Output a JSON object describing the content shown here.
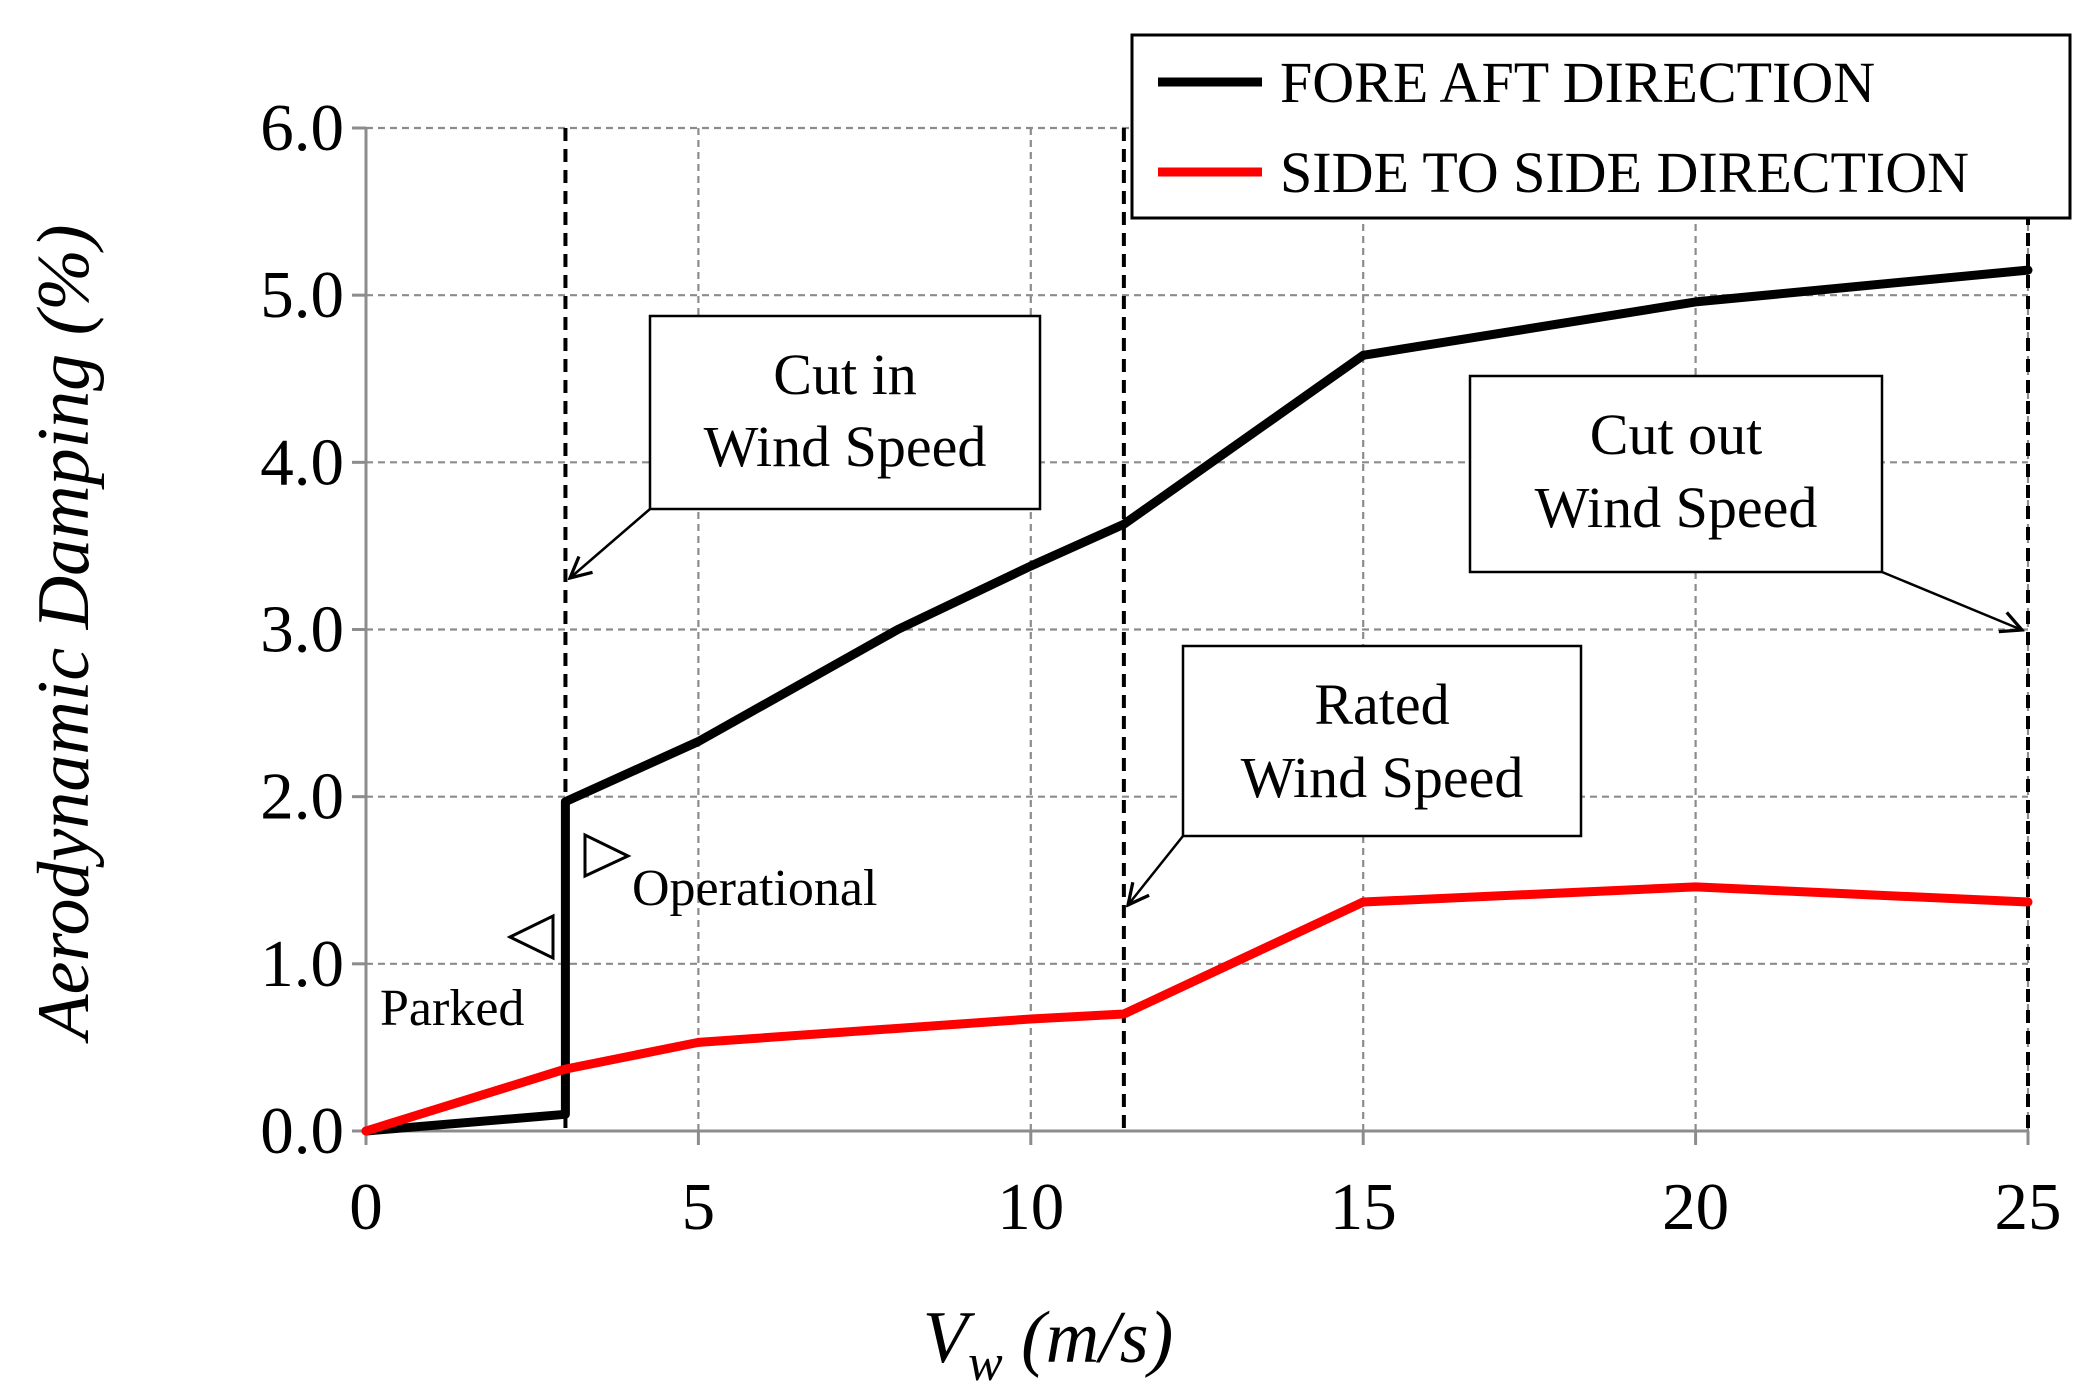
{
  "chart_data": {
    "type": "line",
    "xlabel": "V",
    "xlabel_sub": "w",
    "xlabel_units": " (m/s)",
    "ylabel": "Aerodynamic Damping (%)",
    "xlim": [
      0,
      25
    ],
    "ylim": [
      0,
      6
    ],
    "x_ticks": [
      "0",
      "5",
      "10",
      "15",
      "20",
      "25"
    ],
    "x_tick_values": [
      0,
      5,
      10,
      15,
      20,
      25
    ],
    "y_ticks": [
      "0.0",
      "1.0",
      "2.0",
      "3.0",
      "4.0",
      "5.0",
      "6.0"
    ],
    "y_tick_values": [
      0,
      1,
      2,
      3,
      4,
      5,
      6
    ],
    "grid": true,
    "legend_position": "top-right",
    "series": [
      {
        "name": "FORE AFT DIRECTION",
        "color": "#000000",
        "x": [
          0,
          3,
          3,
          5,
          8,
          10,
          11.4,
          15,
          20,
          25
        ],
        "values": [
          0.0,
          0.1,
          1.97,
          2.33,
          3.0,
          3.38,
          3.63,
          4.64,
          4.96,
          5.15
        ]
      },
      {
        "name": "SIDE TO SIDE DIRECTION",
        "color": "#ff0000",
        "x": [
          0,
          3,
          5,
          10,
          11.4,
          15,
          20,
          25
        ],
        "values": [
          0.0,
          0.37,
          0.53,
          0.67,
          0.7,
          1.37,
          1.46,
          1.37
        ]
      }
    ],
    "vertical_markers": [
      {
        "x": 3,
        "name": "cut-in"
      },
      {
        "x": 11.4,
        "name": "rated"
      },
      {
        "x": 25,
        "name": "cut-out"
      }
    ],
    "callouts": [
      {
        "id": "cut-in",
        "lines": [
          "Cut in",
          "Wind Speed"
        ],
        "arrow_to": {
          "x": 3,
          "y": 3.3
        }
      },
      {
        "id": "rated",
        "lines": [
          "Rated",
          "Wind Speed"
        ],
        "arrow_to": {
          "x": 11.4,
          "y": 1.35
        }
      },
      {
        "id": "cut-out",
        "lines": [
          "Cut out",
          "Wind Speed"
        ],
        "arrow_to": {
          "x": 25,
          "y": 3.0
        }
      }
    ],
    "phase_labels": [
      {
        "id": "parked",
        "text": "Parked",
        "marker": "left-triangle"
      },
      {
        "id": "operational",
        "text": "Operational",
        "marker": "right-triangle"
      }
    ]
  }
}
